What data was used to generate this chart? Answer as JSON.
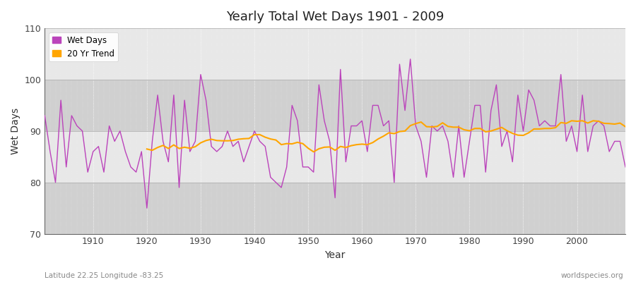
{
  "title": "Yearly Total Wet Days 1901 - 2009",
  "xlabel": "Year",
  "ylabel": "Wet Days",
  "ylim": [
    70,
    110
  ],
  "xlim": [
    1901,
    2009
  ],
  "yticks": [
    70,
    80,
    90,
    100,
    110
  ],
  "xticks": [
    1910,
    1920,
    1930,
    1940,
    1950,
    1960,
    1970,
    1980,
    1990,
    2000
  ],
  "wet_days_color": "#BB44BB",
  "trend_color": "#FFA500",
  "bg_color": "#DCDCDC",
  "band_color_light": "#E8E8E8",
  "band_color_dark": "#D0D0D0",
  "fig_bg_color": "#FFFFFF",
  "legend_items": [
    "Wet Days",
    "20 Yr Trend"
  ],
  "footer_left": "Latitude 22.25 Longitude -83.25",
  "footer_right": "worldspecies.org",
  "years": [
    1901,
    1902,
    1903,
    1904,
    1905,
    1906,
    1907,
    1908,
    1909,
    1910,
    1911,
    1912,
    1913,
    1914,
    1915,
    1916,
    1917,
    1918,
    1919,
    1920,
    1921,
    1922,
    1923,
    1924,
    1925,
    1926,
    1927,
    1928,
    1929,
    1930,
    1931,
    1932,
    1933,
    1934,
    1935,
    1936,
    1937,
    1938,
    1939,
    1940,
    1941,
    1942,
    1943,
    1944,
    1945,
    1946,
    1947,
    1948,
    1949,
    1950,
    1951,
    1952,
    1953,
    1954,
    1955,
    1956,
    1957,
    1958,
    1959,
    1960,
    1961,
    1962,
    1963,
    1964,
    1965,
    1966,
    1967,
    1968,
    1969,
    1970,
    1971,
    1972,
    1973,
    1974,
    1975,
    1976,
    1977,
    1978,
    1979,
    1980,
    1981,
    1982,
    1983,
    1984,
    1985,
    1986,
    1987,
    1988,
    1989,
    1990,
    1991,
    1992,
    1993,
    1994,
    1995,
    1996,
    1997,
    1998,
    1999,
    2000,
    2001,
    2002,
    2003,
    2004,
    2005,
    2006,
    2007,
    2008,
    2009
  ],
  "wet_days": [
    93,
    86,
    80,
    96,
    83,
    93,
    91,
    90,
    82,
    86,
    87,
    82,
    91,
    88,
    90,
    86,
    83,
    82,
    86,
    75,
    88,
    97,
    88,
    84,
    97,
    79,
    96,
    86,
    88,
    101,
    96,
    87,
    86,
    87,
    90,
    87,
    88,
    84,
    87,
    90,
    88,
    87,
    81,
    80,
    79,
    83,
    95,
    92,
    83,
    83,
    82,
    99,
    92,
    88,
    77,
    102,
    84,
    91,
    91,
    92,
    86,
    95,
    95,
    91,
    92,
    80,
    103,
    94,
    104,
    91,
    88,
    81,
    91,
    90,
    91,
    88,
    81,
    91,
    81,
    88,
    95,
    95,
    82,
    94,
    99,
    87,
    90,
    84,
    97,
    90,
    98,
    96,
    91,
    92,
    91,
    91,
    101,
    88,
    91,
    86,
    97,
    86,
    91,
    92,
    91,
    86,
    88,
    88,
    83
  ]
}
